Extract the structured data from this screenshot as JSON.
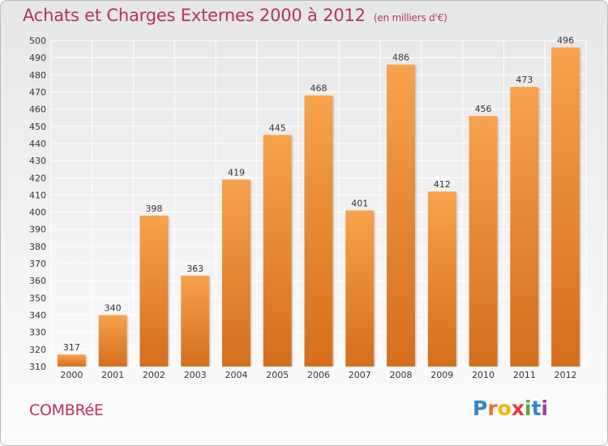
{
  "header": {
    "title": "Achats et Charges Externes 2000 à 2012",
    "subtitle": "(en milliers d'€)"
  },
  "footer": {
    "commune": "COMBRéE",
    "logo_text": "Proxiti"
  },
  "colors": {
    "title": "#b8325a",
    "bar_light": "#f7a24c",
    "bar_dark": "#d97620",
    "grid": "#ffffff",
    "logo_letters": [
      "#2f86c9",
      "#e4732a",
      "#f0b400",
      "#e03a37",
      "#54a83a",
      "#2f86c9",
      "#9c3ea0"
    ]
  },
  "chart_data": {
    "type": "bar",
    "categories": [
      "2000",
      "2001",
      "2002",
      "2003",
      "2004",
      "2005",
      "2006",
      "2007",
      "2008",
      "2009",
      "2010",
      "2011",
      "2012"
    ],
    "values": [
      317,
      340,
      398,
      363,
      419,
      445,
      468,
      401,
      486,
      412,
      456,
      473,
      496
    ],
    "data_labels": [
      "317",
      "340",
      "398",
      "363",
      "419",
      "445",
      "468",
      "401",
      "486",
      "412",
      "456",
      "473",
      "496"
    ],
    "title": "Achats et Charges Externes 2000 à 2012",
    "xlabel": "",
    "ylabel": "",
    "ylim": [
      310,
      500
    ],
    "yticks": [
      "310",
      "320",
      "330",
      "340",
      "350",
      "360",
      "370",
      "380",
      "390",
      "400",
      "410",
      "420",
      "430",
      "440",
      "450",
      "460",
      "470",
      "480",
      "490",
      "500"
    ],
    "grid": true,
    "legend": "none"
  }
}
